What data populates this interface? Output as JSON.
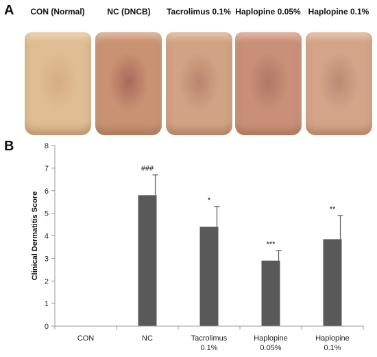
{
  "panel_a": {
    "letter": "A",
    "photos": [
      {
        "label": "CON (Normal)",
        "tone": "#e0bd93",
        "lesion": "#d6ad86"
      },
      {
        "label": "NC (DNCB)",
        "tone": "#c99273",
        "lesion": "#a96a5a"
      },
      {
        "label": "Tacrolimus 0.1%",
        "tone": "#d1a283",
        "lesion": "#b98570"
      },
      {
        "label": "Haplopine 0.05%",
        "tone": "#c98f78",
        "lesion": "#b07767"
      },
      {
        "label": "Haplopine 0.1%",
        "tone": "#d3a488",
        "lesion": "#bb8a74"
      }
    ]
  },
  "chart_data": {
    "panel_letter": "B",
    "type": "bar",
    "categories": [
      [
        "CON"
      ],
      [
        "NC"
      ],
      [
        "Tacrolimus",
        "0.1%"
      ],
      [
        "Haplopine",
        "0.05%"
      ],
      [
        "Haplopine",
        "0.1%"
      ]
    ],
    "values": [
      0,
      5.8,
      4.4,
      2.9,
      3.85
    ],
    "errors": [
      0,
      0.9,
      0.9,
      0.45,
      1.05
    ],
    "significance": [
      "",
      "###",
      "*",
      "***",
      "**"
    ],
    "xlabel": "",
    "ylabel": "Clinical Dermatitis Score",
    "ylim": [
      0,
      8
    ],
    "yticks": [
      "0",
      "1",
      "2",
      "3",
      "4",
      "5",
      "6",
      "7",
      "8"
    ],
    "grid": false,
    "bar_color": "#595959"
  }
}
